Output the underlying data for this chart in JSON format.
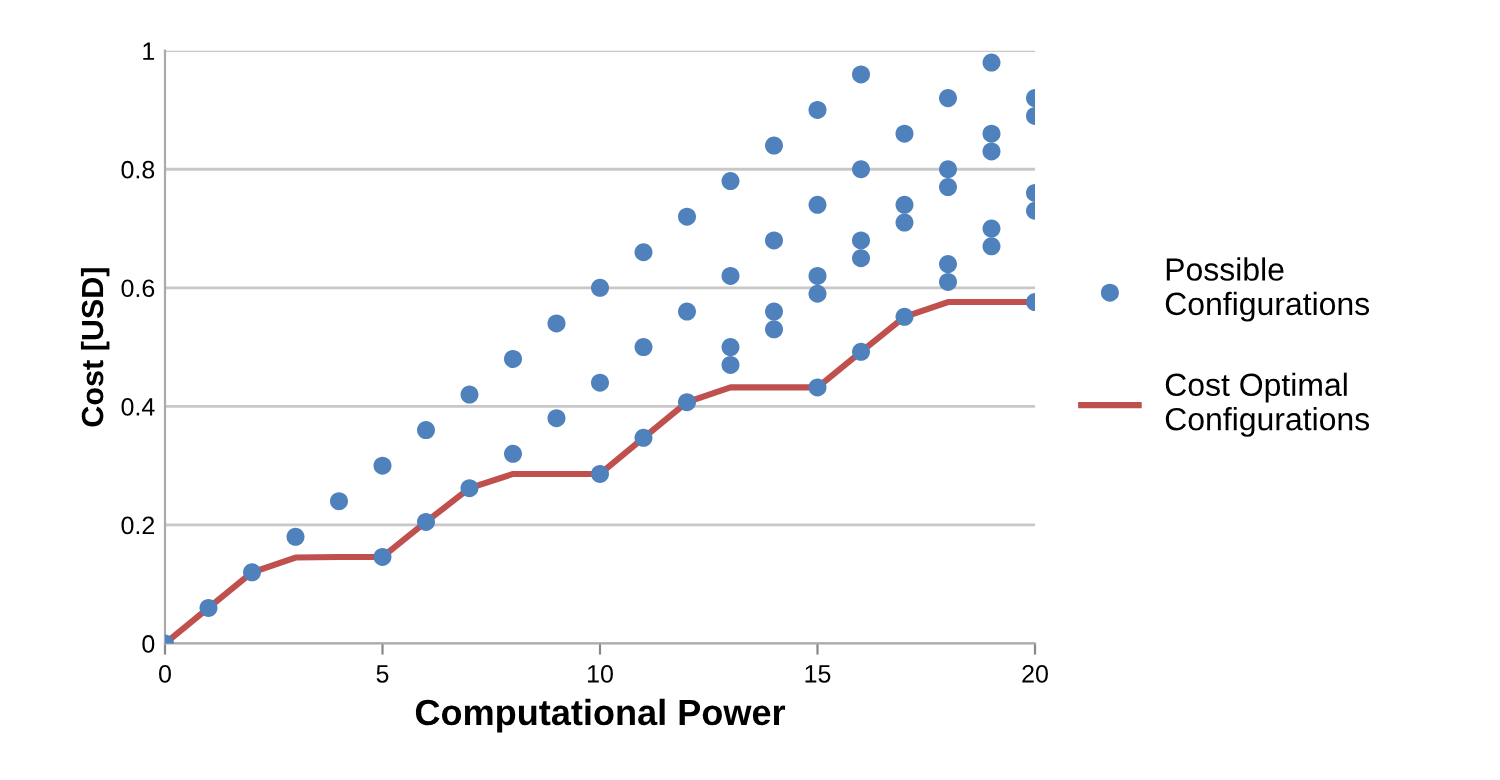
{
  "chart_data": {
    "type": "scatter",
    "xlabel": "Computational Power",
    "ylabel": "Cost [USD]",
    "xlim": [
      0,
      20
    ],
    "xticks": [
      0,
      5,
      10,
      15,
      20
    ],
    "ylim": [
      0,
      1
    ],
    "yticks": [
      0,
      0.2,
      0.4,
      0.6,
      0.8,
      1
    ],
    "grid": "y",
    "legend": "right",
    "series": [
      {
        "name": "Possible Configurations",
        "marker": "circle",
        "color": "#4f81bd",
        "x": [
          0,
          1,
          2,
          3,
          4,
          5,
          5,
          6,
          6,
          7,
          7,
          8,
          8,
          9,
          9,
          10,
          10,
          10,
          11,
          11,
          11,
          12,
          12,
          12,
          13,
          13,
          13,
          13,
          14,
          14,
          14,
          14,
          15,
          15,
          15,
          15,
          15,
          16,
          16,
          16,
          16,
          16,
          17,
          17,
          17,
          17,
          18,
          18,
          18,
          18,
          18,
          19,
          19,
          19,
          19,
          19,
          20,
          20,
          20,
          20,
          20
        ],
        "values": [
          0,
          0.06,
          0.12,
          0.18,
          0.24,
          0.3,
          0.146,
          0.36,
          0.205,
          0.42,
          0.262,
          0.48,
          0.32,
          0.54,
          0.38,
          0.6,
          0.44,
          0.286,
          0.66,
          0.5,
          0.347,
          0.72,
          0.56,
          0.407,
          0.78,
          0.62,
          0.5,
          0.47,
          0.84,
          0.68,
          0.56,
          0.53,
          0.9,
          0.74,
          0.62,
          0.59,
          0.432,
          0.96,
          0.8,
          0.68,
          0.65,
          0.492,
          0.86,
          0.74,
          0.71,
          0.551,
          0.92,
          0.8,
          0.77,
          0.64,
          0.61,
          0.98,
          0.86,
          0.83,
          0.7,
          0.67,
          0.92,
          0.89,
          0.76,
          0.73,
          0.576
        ]
      },
      {
        "name": "Cost Optimal Configurations",
        "type": "line",
        "marker": "none",
        "line_style": "solid",
        "color": "#c0504d",
        "x": [
          0,
          1,
          2,
          3,
          4,
          5,
          6,
          7,
          8,
          9,
          10,
          11,
          12,
          13,
          14,
          15,
          16,
          17,
          18,
          19,
          20
        ],
        "values": [
          0,
          0.06,
          0.12,
          0.145,
          0.146,
          0.146,
          0.205,
          0.262,
          0.286,
          0.286,
          0.286,
          0.347,
          0.407,
          0.432,
          0.432,
          0.432,
          0.492,
          0.551,
          0.576,
          0.576,
          0.576
        ]
      }
    ]
  }
}
